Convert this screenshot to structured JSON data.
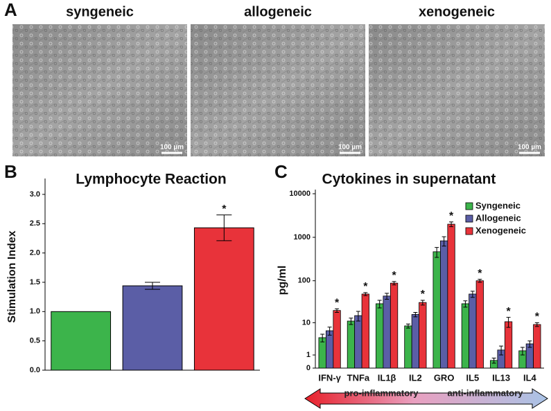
{
  "panel_a": {
    "panel": "A",
    "images": [
      {
        "title": "syngeneic",
        "scale_bar": "100 µm"
      },
      {
        "title": "allogeneic",
        "scale_bar": "100 µm"
      },
      {
        "title": "xenogeneic",
        "scale_bar": "100 µm"
      }
    ]
  },
  "chart_data": [
    {
      "type": "bar",
      "panel": "B",
      "title": "Lymphocyte Reaction",
      "y_label": "Stimulation Index",
      "categories": [
        null,
        null,
        null
      ],
      "values": [
        1.0,
        1.44,
        2.43
      ],
      "errors": [
        0,
        0.06,
        0.22
      ],
      "colors": [
        "#3cb44b",
        "#5b5ea6",
        "#e8333a"
      ],
      "significance": [
        null,
        null,
        "*"
      ],
      "ylim": [
        0,
        3.2
      ],
      "yticks": [
        {
          "value": 0,
          "label": "0.0"
        },
        {
          "value": 0.5,
          "label": "0.5"
        },
        {
          "value": 1,
          "label": "1.0"
        },
        {
          "value": 1.5,
          "label": "1.5"
        },
        {
          "value": 2,
          "label": "2.0"
        },
        {
          "value": 2.5,
          "label": "2.5"
        },
        {
          "value": 3,
          "label": "3.0"
        }
      ]
    },
    {
      "type": "grouped-bar",
      "panel": "C",
      "title": "Cytokines in supernatant",
      "y_label": "pg/ml",
      "yscale": "log1p",
      "ylim": [
        0,
        10000
      ],
      "yticks": [
        0,
        1,
        10,
        100,
        1000,
        10000
      ],
      "categories": [
        "IFN-γ",
        "TNFa",
        "IL1β",
        "IL2",
        "GRO",
        "IL5",
        "IL13",
        "IL4"
      ],
      "series": [
        {
          "name": "Syngeneic",
          "color": "#3cb44b",
          "values": [
            4,
            11,
            29,
            8.3,
            466,
            29,
            0.5,
            1.5
          ],
          "errors": [
            1,
            2,
            6,
            1,
            120,
            5,
            0.2,
            0.5
          ]
        },
        {
          "name": "Allogeneic",
          "color": "#5b5ea6",
          "values": [
            6.2,
            15,
            44,
            16,
            830,
            49,
            1.6,
            2.6
          ],
          "errors": [
            1.5,
            4,
            7,
            2,
            200,
            8,
            0.6,
            0.6
          ]
        },
        {
          "name": "Xenogeneic",
          "color": "#e8333a",
          "values": [
            20,
            49,
            88,
            31,
            2000,
            100,
            10.6,
            9
          ],
          "errors": [
            2,
            4,
            8,
            4,
            250,
            8,
            3,
            1
          ],
          "significance": [
            "*",
            "*",
            "*",
            "*",
            "*",
            "*",
            "*",
            "*"
          ]
        }
      ],
      "arrow_labels": [
        "pro-inflammatory",
        "anti-inflammatory"
      ]
    }
  ]
}
